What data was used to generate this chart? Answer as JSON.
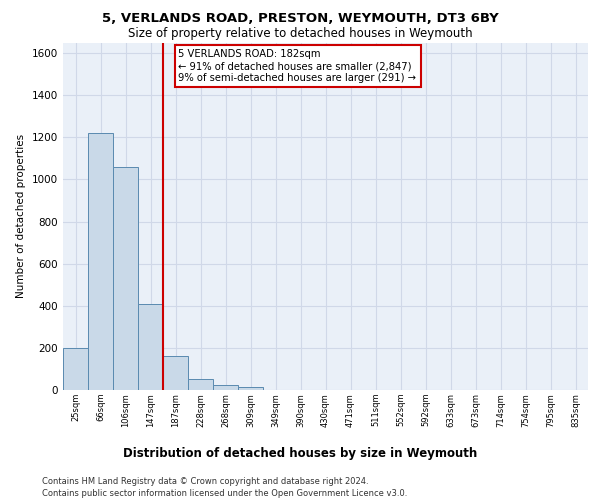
{
  "title_line1": "5, VERLANDS ROAD, PRESTON, WEYMOUTH, DT3 6BY",
  "title_line2": "Size of property relative to detached houses in Weymouth",
  "xlabel": "Distribution of detached houses by size in Weymouth",
  "ylabel": "Number of detached properties",
  "categories": [
    "25sqm",
    "66sqm",
    "106sqm",
    "147sqm",
    "187sqm",
    "228sqm",
    "268sqm",
    "309sqm",
    "349sqm",
    "390sqm",
    "430sqm",
    "471sqm",
    "511sqm",
    "552sqm",
    "592sqm",
    "633sqm",
    "673sqm",
    "714sqm",
    "754sqm",
    "795sqm",
    "835sqm"
  ],
  "values": [
    200,
    1220,
    1060,
    410,
    160,
    50,
    25,
    15,
    0,
    0,
    0,
    0,
    0,
    0,
    0,
    0,
    0,
    0,
    0,
    0,
    0
  ],
  "bar_color": "#c9d9e8",
  "bar_edge_color": "#5a8ab0",
  "vline_pos": 3.5,
  "ylim": [
    0,
    1650
  ],
  "yticks": [
    0,
    200,
    400,
    600,
    800,
    1000,
    1200,
    1400,
    1600
  ],
  "annotation_box_text": "5 VERLANDS ROAD: 182sqm\n← 91% of detached houses are smaller (2,847)\n9% of semi-detached houses are larger (291) →",
  "annotation_box_color": "#cc0000",
  "vline_color": "#cc0000",
  "footnote_line1": "Contains HM Land Registry data © Crown copyright and database right 2024.",
  "footnote_line2": "Contains public sector information licensed under the Open Government Licence v3.0.",
  "grid_color": "#d0d8e8",
  "background_color": "#eaf0f8",
  "fig_bg": "#ffffff"
}
